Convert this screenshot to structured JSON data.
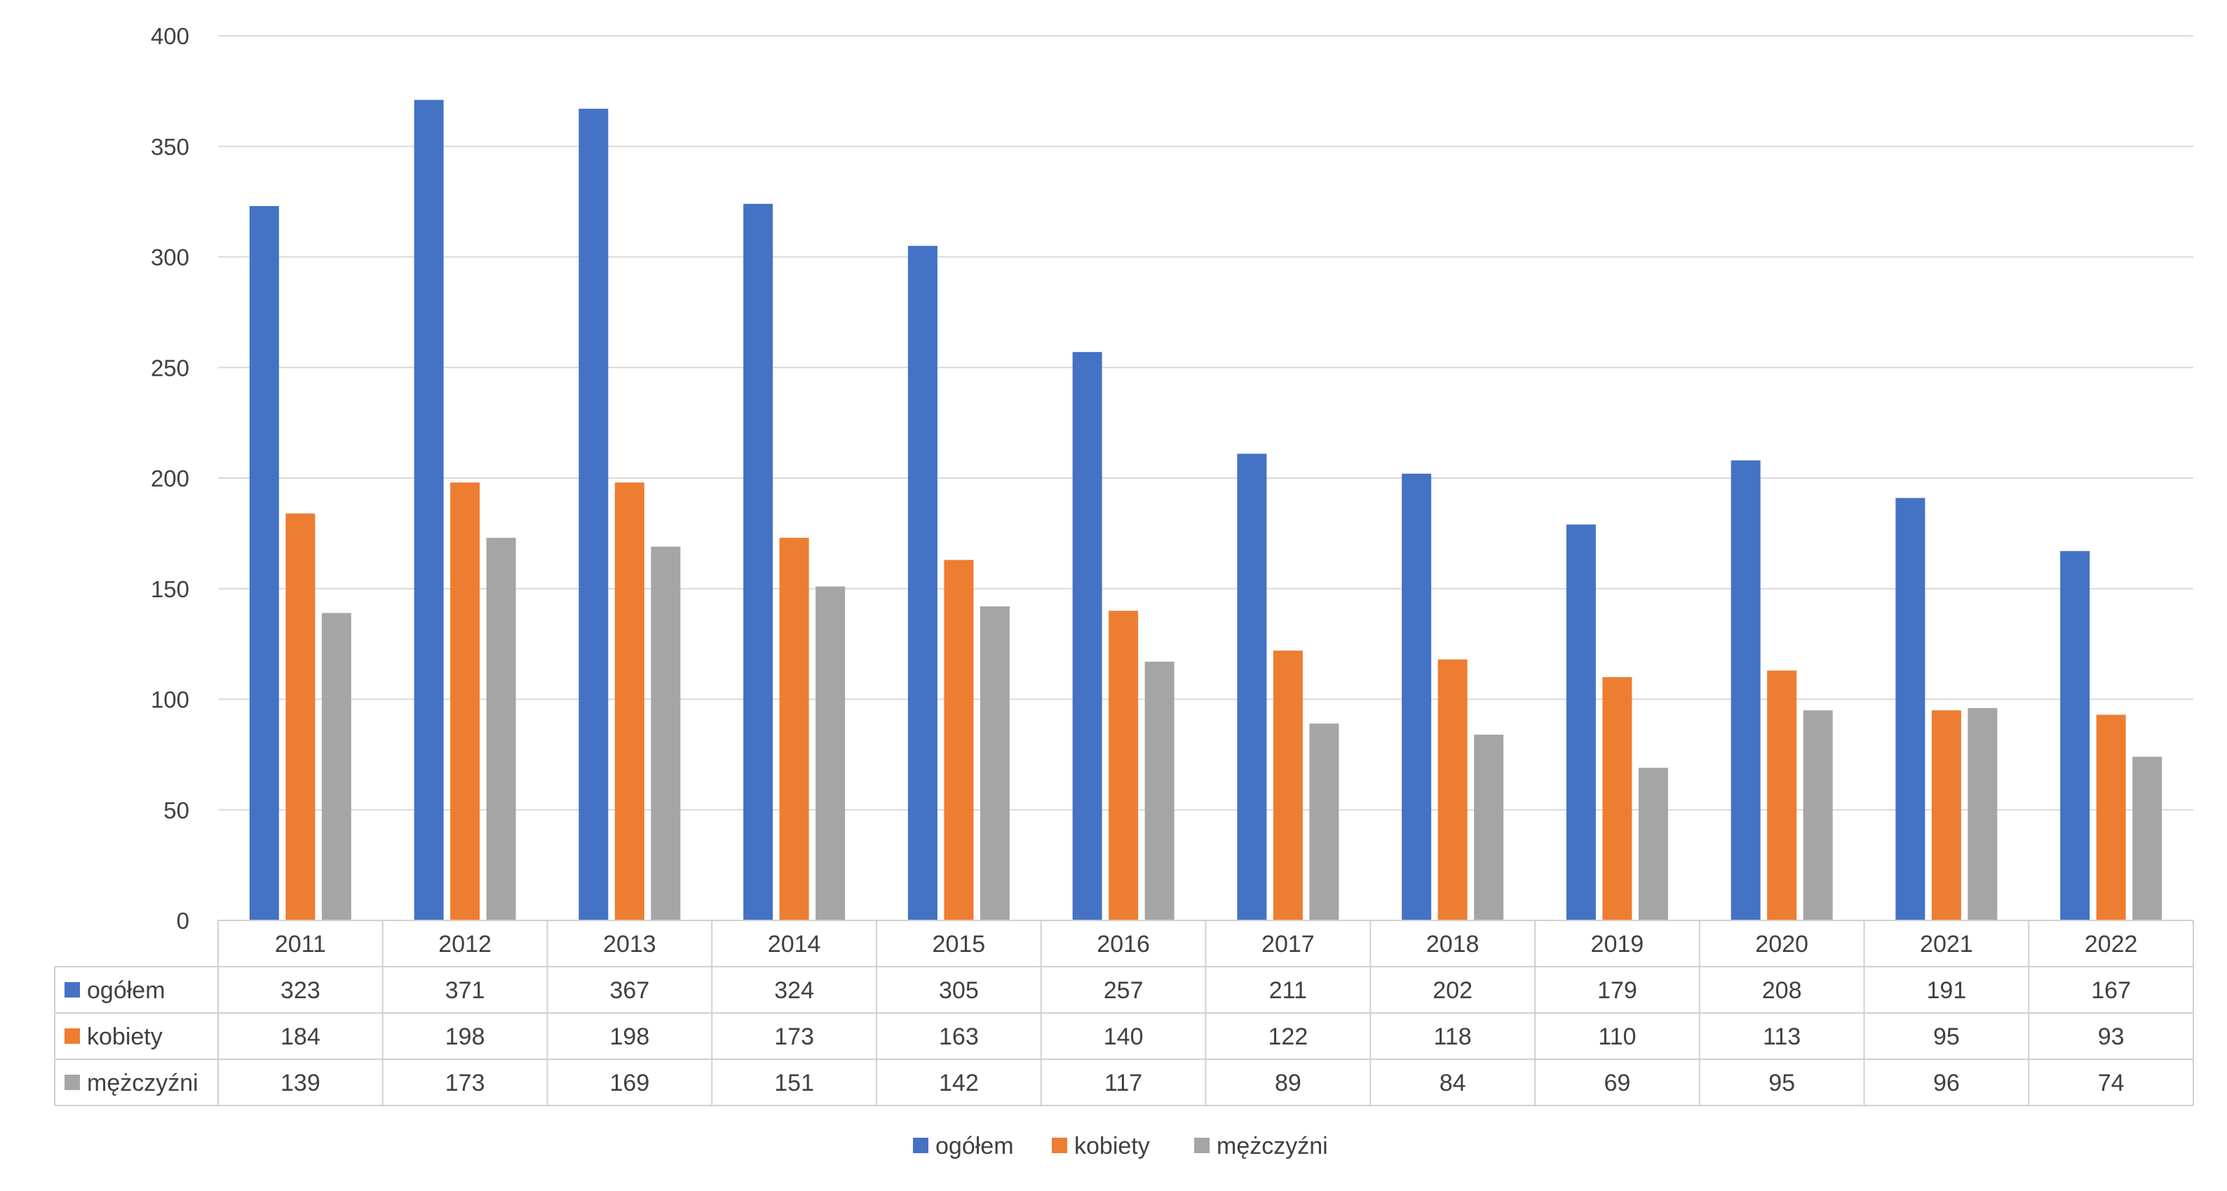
{
  "chart_data": {
    "type": "bar",
    "title": "",
    "xlabel": "",
    "ylabel": "",
    "ylim": [
      0,
      400
    ],
    "yticks": [
      0,
      50,
      100,
      150,
      200,
      250,
      300,
      350,
      400
    ],
    "grid": true,
    "legend_position": "bottom",
    "data_table": true,
    "categories": [
      "2011",
      "2012",
      "2013",
      "2014",
      "2015",
      "2016",
      "2017",
      "2018",
      "2019",
      "2020",
      "2021",
      "2022"
    ],
    "series": [
      {
        "name": "ogółem",
        "color": "#4472C4",
        "values": [
          323,
          371,
          367,
          324,
          305,
          257,
          211,
          202,
          179,
          208,
          191,
          167
        ]
      },
      {
        "name": "kobiety",
        "color": "#ED7D31",
        "values": [
          184,
          198,
          198,
          173,
          163,
          140,
          122,
          118,
          110,
          113,
          95,
          93
        ]
      },
      {
        "name": "mężczyźni",
        "color": "#A5A5A5",
        "values": [
          139,
          173,
          169,
          151,
          142,
          117,
          89,
          84,
          69,
          95,
          96,
          74
        ]
      }
    ]
  }
}
